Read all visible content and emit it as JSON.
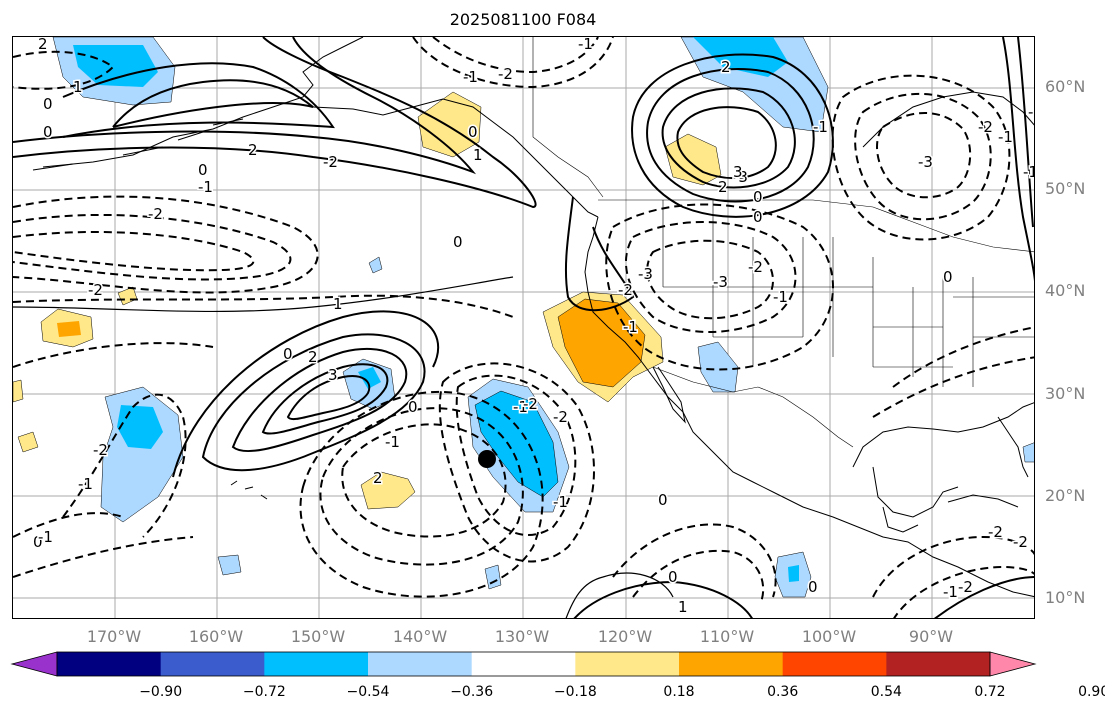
{
  "title": "2025081100 F084",
  "lat_labels": [
    "60°N",
    "50°N",
    "40°N",
    "30°N",
    "20°N",
    "10°N"
  ],
  "lon_labels": [
    "170°W",
    "160°W",
    "150°W",
    "140°W",
    "130°W",
    "120°W",
    "110°W",
    "100°W",
    "90°W"
  ],
  "contour_labels": [
    "2",
    "1",
    "0",
    "0",
    "-1",
    "-2",
    "-1",
    "0",
    "1",
    "2",
    "-2",
    "0",
    "-1",
    "2",
    "-1",
    "0",
    "-3",
    "-2",
    "0",
    "-2",
    "-3",
    "0",
    "-1",
    "-3",
    "-2",
    "-2",
    "1",
    "2",
    "3",
    "0",
    "-1",
    "0",
    "-1",
    "-2",
    "2",
    "-2",
    "-2",
    "-1",
    "0",
    "0",
    "1",
    "-1",
    "-2",
    "0",
    "-1",
    "-2",
    "-1",
    "-1",
    "-3",
    "-2",
    "3",
    "2",
    "0",
    "-2",
    "0",
    "-1",
    "-1",
    "-1"
  ],
  "colorbar": {
    "ticks": [
      "−0.90",
      "−0.72",
      "−0.54",
      "−0.36",
      "−0.18",
      "0.18",
      "0.36",
      "0.54",
      "0.72",
      "0.90"
    ],
    "bins": [
      {
        "color": "#9932cc"
      },
      {
        "color": "#000080"
      },
      {
        "color": "#3a5ccc"
      },
      {
        "color": "#00bfff"
      },
      {
        "color": "#add8ff"
      },
      {
        "color": "#ffffff"
      },
      {
        "color": "#ffe88a"
      },
      {
        "color": "#ffa500"
      },
      {
        "color": "#ff4500"
      },
      {
        "color": "#b22222"
      },
      {
        "color": "#ff88aa"
      }
    ]
  },
  "storm_marker": {
    "lon": -134,
    "lat": 24
  },
  "colors": {
    "land_line": "#000000",
    "grid": "#aaaaaa",
    "contour": "#000000"
  }
}
